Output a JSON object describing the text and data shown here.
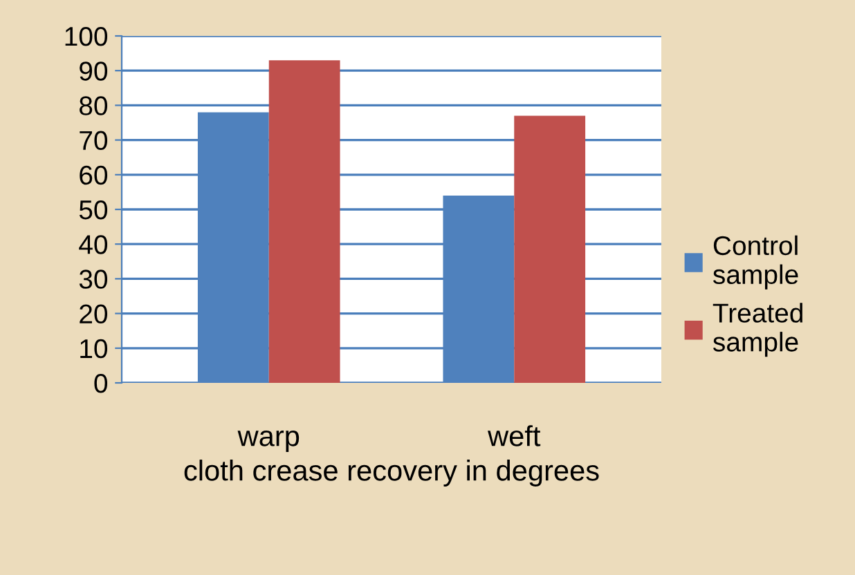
{
  "chart_data": {
    "type": "bar",
    "xlabel": "cloth crease recovery in degrees",
    "categories": [
      "warp",
      "weft"
    ],
    "series": [
      {
        "name": "Control\nsample",
        "color": "#4f81bd",
        "values": [
          78,
          54
        ]
      },
      {
        "name": "Treated\nsample",
        "color": "#c0504d",
        "values": [
          93,
          77
        ]
      }
    ],
    "ylim": [
      0,
      100
    ],
    "yticks": [
      0,
      10,
      20,
      30,
      40,
      50,
      60,
      70,
      80,
      90,
      100
    ],
    "grid": "y",
    "legend": "right"
  }
}
